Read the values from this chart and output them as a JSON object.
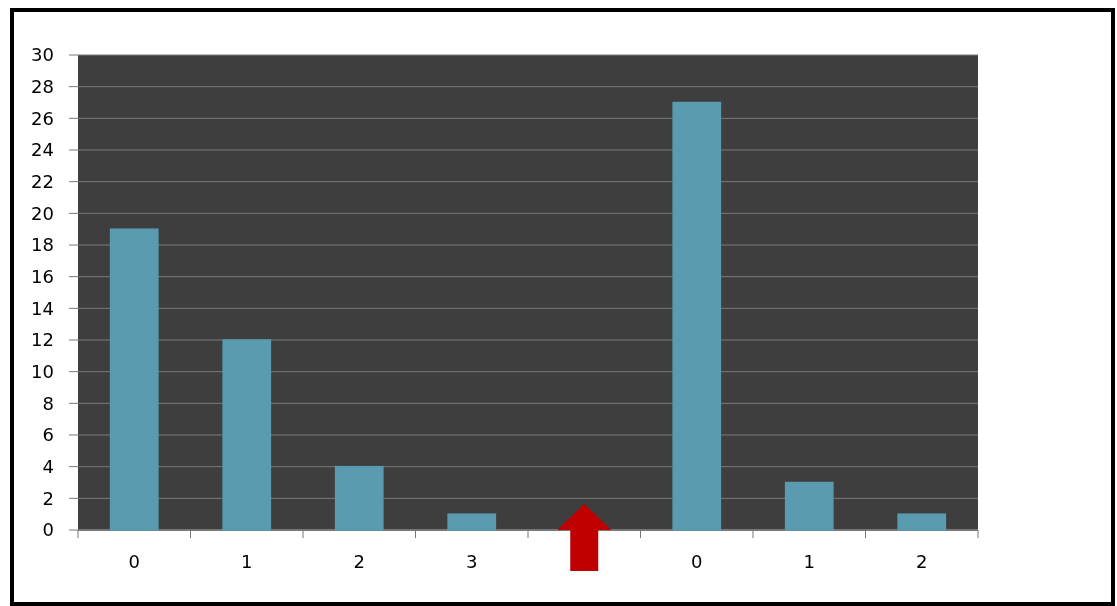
{
  "chart_data": {
    "type": "bar",
    "categories": [
      "0",
      "1",
      "2",
      "3",
      null,
      "0",
      "1",
      "2"
    ],
    "values": [
      19,
      12,
      4,
      1,
      null,
      27,
      3,
      1
    ],
    "color": "#5a9bb0",
    "ylim": [
      0,
      30
    ],
    "yticks": [
      0,
      2,
      4,
      6,
      8,
      10,
      12,
      14,
      16,
      18,
      20,
      22,
      24,
      26,
      28,
      30
    ],
    "grid": "y"
  }
}
